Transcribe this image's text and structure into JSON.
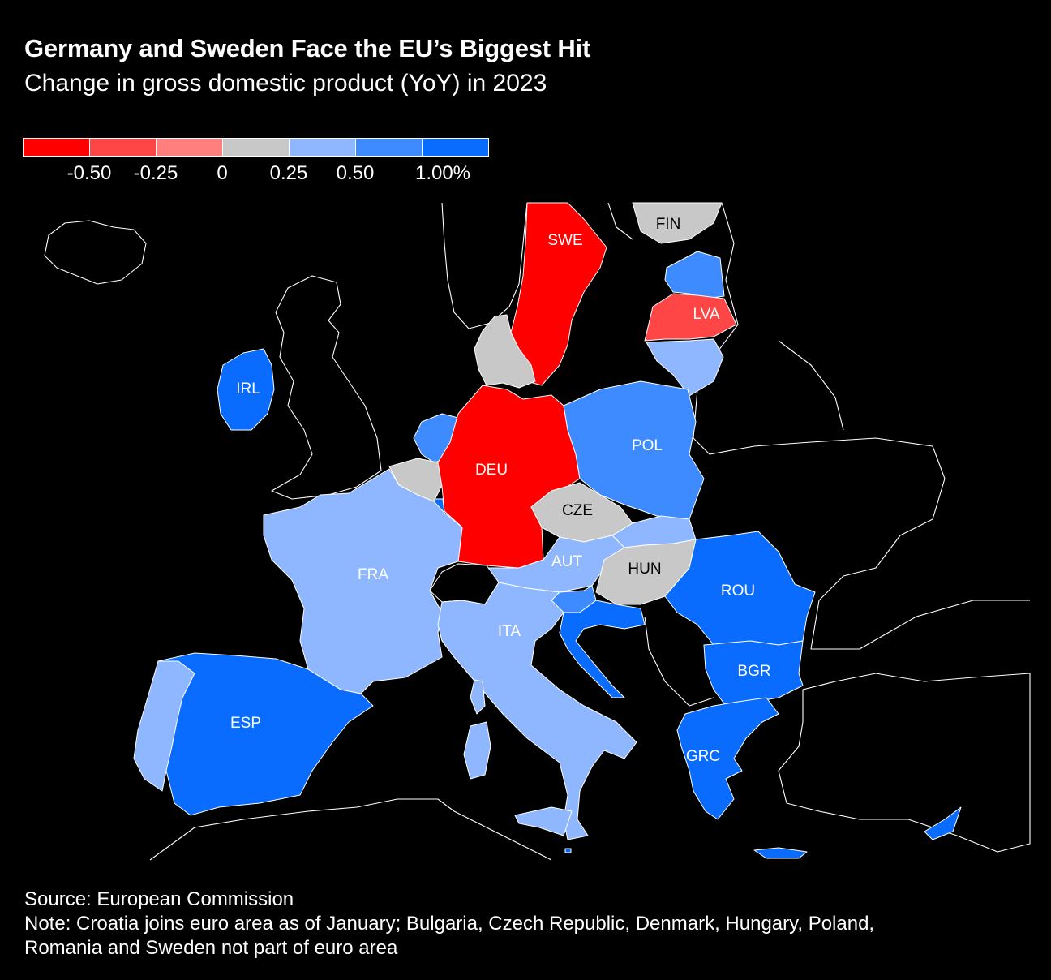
{
  "title": "Germany and Sweden Face the EU’s Biggest Hit",
  "subtitle": "Change in gross domestic product (YoY) in 2023",
  "legend": {
    "colors": [
      "#ff0000",
      "#ff4646",
      "#ff7f7f",
      "#c8c8c8",
      "#8fb7ff",
      "#3d8bff",
      "#0a6bff"
    ],
    "ticks": [
      "-0.50",
      "-0.25",
      "0",
      "0.25",
      "0.50",
      "1.00%"
    ]
  },
  "map": {
    "countries": [
      {
        "code": "SWE",
        "color": "#ff0000",
        "label_color": "#ffffff"
      },
      {
        "code": "FIN",
        "color": "#c8c8c8",
        "label_color": "#000000"
      },
      {
        "code": "EST",
        "color": "#3d8bff",
        "label_color": "#ffffff"
      },
      {
        "code": "LVA",
        "color": "#ff4646",
        "label_color": "#ffffff"
      },
      {
        "code": "LTU",
        "color": "#8fb7ff",
        "label_color": "#ffffff"
      },
      {
        "code": "DNK",
        "color": "#c8c8c8",
        "label_color": "#000000"
      },
      {
        "code": "IRL",
        "color": "#0a6bff",
        "label_color": "#ffffff"
      },
      {
        "code": "NLD",
        "color": "#3d8bff",
        "label_color": "#ffffff"
      },
      {
        "code": "BEL",
        "color": "#c8c8c8",
        "label_color": "#000000"
      },
      {
        "code": "LUX",
        "color": "#0a6bff",
        "label_color": "#ffffff"
      },
      {
        "code": "DEU",
        "color": "#ff0000",
        "label_color": "#ffffff"
      },
      {
        "code": "POL",
        "color": "#3d8bff",
        "label_color": "#ffffff"
      },
      {
        "code": "CZE",
        "color": "#c8c8c8",
        "label_color": "#000000"
      },
      {
        "code": "SVK",
        "color": "#8fb7ff",
        "label_color": "#ffffff"
      },
      {
        "code": "AUT",
        "color": "#8fb7ff",
        "label_color": "#ffffff"
      },
      {
        "code": "HUN",
        "color": "#c8c8c8",
        "label_color": "#000000"
      },
      {
        "code": "ROU",
        "color": "#0a6bff",
        "label_color": "#ffffff"
      },
      {
        "code": "FRA",
        "color": "#8fb7ff",
        "label_color": "#ffffff"
      },
      {
        "code": "ITA",
        "color": "#8fb7ff",
        "label_color": "#ffffff"
      },
      {
        "code": "SVN",
        "color": "#3d8bff",
        "label_color": "#ffffff"
      },
      {
        "code": "HRV",
        "color": "#0a6bff",
        "label_color": "#ffffff"
      },
      {
        "code": "BGR",
        "color": "#0a6bff",
        "label_color": "#ffffff"
      },
      {
        "code": "GRC",
        "color": "#0a6bff",
        "label_color": "#ffffff"
      },
      {
        "code": "ESP",
        "color": "#0a6bff",
        "label_color": "#ffffff"
      },
      {
        "code": "PRT",
        "color": "#8fb7ff",
        "label_color": "#ffffff"
      },
      {
        "code": "CYP",
        "color": "#0a6bff",
        "label_color": "#ffffff"
      },
      {
        "code": "MLT",
        "color": "#0a6bff",
        "label_color": "#ffffff"
      }
    ],
    "labels": [
      "SWE",
      "FIN",
      "LVA",
      "IRL",
      "DEU",
      "POL",
      "CZE",
      "AUT",
      "HUN",
      "ROU",
      "FRA",
      "ITA",
      "BGR",
      "ESP",
      "GRC"
    ]
  },
  "footer": {
    "source": "Source: European Commission",
    "note_line1": "Note: Croatia joins euro area as of January; Bulgaria, Czech Republic, Denmark, Hungary, Poland,",
    "note_line2": "Romania and Sweden not part of euro area"
  }
}
